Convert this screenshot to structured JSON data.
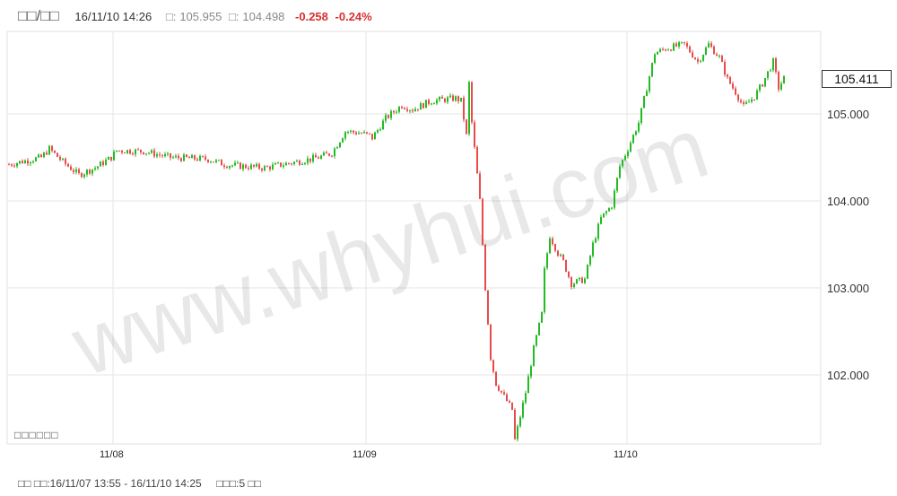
{
  "header": {
    "title": "□□/□□",
    "datetime": "16/11/10 14:26",
    "high_label": "□:",
    "high": "105.955",
    "low_label": "□:",
    "low": "104.498",
    "change": "-0.258",
    "change_pct": "-0.24%"
  },
  "legend_text": "□□□□□□",
  "last_price": "105.411",
  "footer": {
    "range_label": "□□ □□:",
    "range": "16/11/07 13:55 - 16/11/10 14:25",
    "period_label": "□□□:",
    "period": "5 □□"
  },
  "watermark": "www.whyhui.com",
  "colors": {
    "up": "#22bb22",
    "down": "#e84b4b",
    "grid": "#e6e6e6",
    "change": "#d83030"
  },
  "chart_data": {
    "type": "candlestick",
    "y_ticks": [
      "105.000",
      "104.000",
      "103.000",
      "102.000"
    ],
    "x_ticks": [
      "11/08",
      "11/09",
      "11/10"
    ],
    "ylim": [
      101.2,
      105.95
    ],
    "grid": true,
    "close_path": [
      [
        0,
        104.42
      ],
      [
        12,
        104.5
      ],
      [
        15,
        104.6
      ],
      [
        20,
        104.45
      ],
      [
        26,
        104.3
      ],
      [
        32,
        104.38
      ],
      [
        38,
        104.5
      ],
      [
        40,
        104.58
      ],
      [
        50,
        104.57
      ],
      [
        60,
        104.5
      ],
      [
        74,
        104.48
      ],
      [
        80,
        104.42
      ],
      [
        86,
        104.4
      ],
      [
        95,
        104.38
      ],
      [
        107,
        104.45
      ],
      [
        115,
        104.5
      ],
      [
        120,
        104.55
      ],
      [
        125,
        104.8
      ],
      [
        131,
        104.78
      ],
      [
        134,
        104.75
      ],
      [
        134,
        104.68
      ],
      [
        140,
        104.95
      ],
      [
        146,
        105.1
      ],
      [
        150,
        105.05
      ],
      [
        157,
        105.15
      ],
      [
        166,
        105.18
      ],
      [
        168,
        105.15
      ],
      [
        170,
        104.75
      ],
      [
        171,
        105.35
      ],
      [
        172,
        104.9
      ],
      [
        175,
        104.0
      ],
      [
        177,
        103.0
      ],
      [
        179,
        102.2
      ],
      [
        181,
        101.9
      ],
      [
        184,
        101.75
      ],
      [
        187,
        101.6
      ],
      [
        188,
        101.25
      ],
      [
        192,
        101.8
      ],
      [
        195,
        102.3
      ],
      [
        198,
        102.7
      ],
      [
        199,
        103.2
      ],
      [
        201,
        103.6
      ],
      [
        204,
        103.4
      ],
      [
        206,
        103.3
      ],
      [
        209,
        103.05
      ],
      [
        214,
        103.1
      ],
      [
        217,
        103.5
      ],
      [
        220,
        103.8
      ],
      [
        224,
        103.95
      ],
      [
        227,
        104.4
      ],
      [
        230,
        104.6
      ],
      [
        234,
        104.9
      ],
      [
        237,
        105.3
      ],
      [
        240,
        105.7
      ],
      [
        244,
        105.75
      ],
      [
        251,
        105.8
      ],
      [
        256,
        105.6
      ],
      [
        260,
        105.8
      ],
      [
        264,
        105.65
      ],
      [
        267,
        105.4
      ],
      [
        270,
        105.25
      ],
      [
        273,
        105.08
      ],
      [
        277,
        105.2
      ],
      [
        280,
        105.35
      ],
      [
        284,
        105.6
      ],
      [
        286,
        105.3
      ],
      [
        288,
        105.41
      ]
    ]
  }
}
